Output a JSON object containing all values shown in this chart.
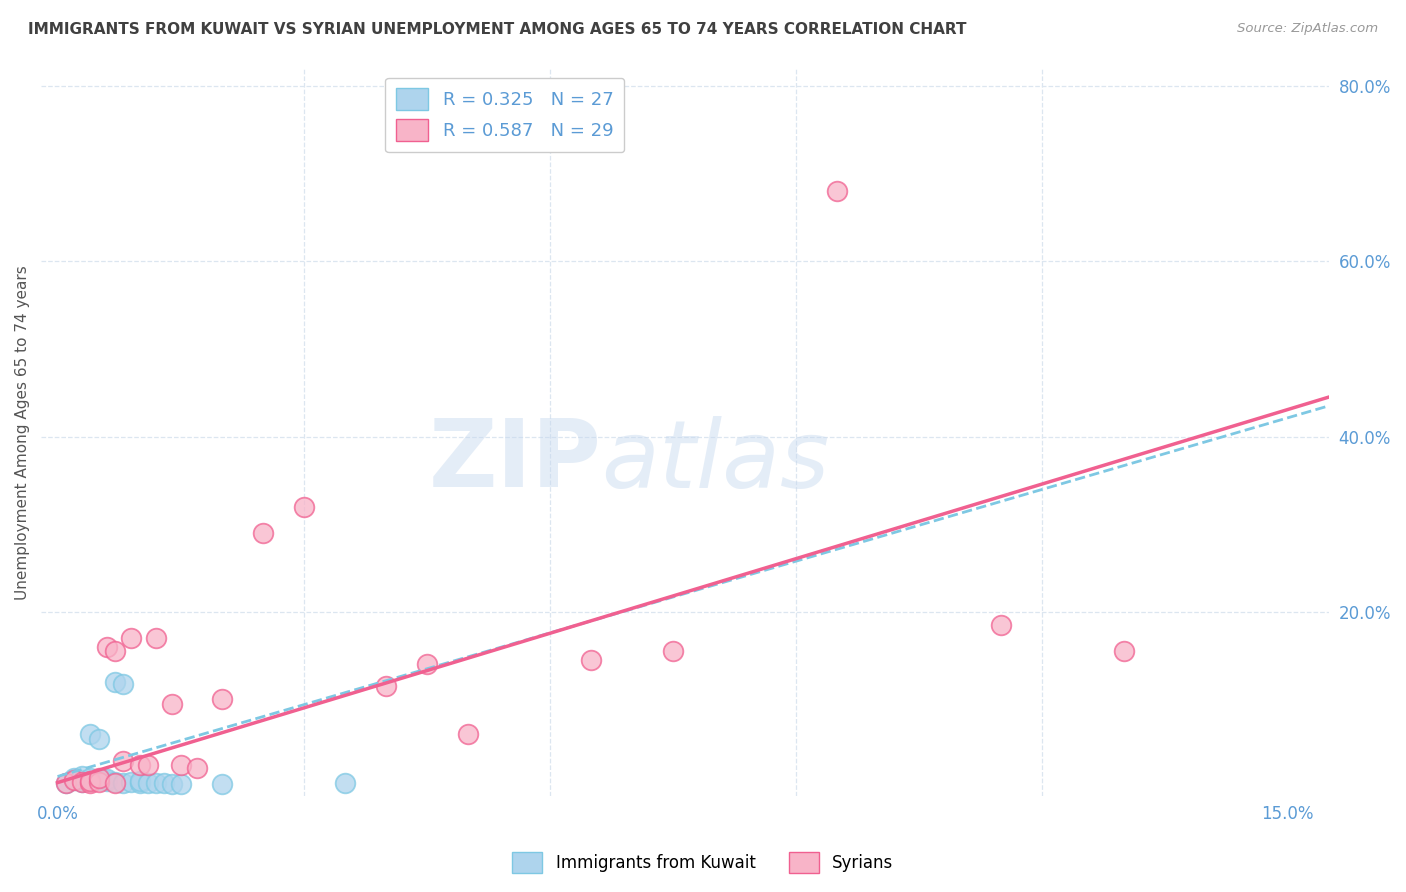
{
  "title": "IMMIGRANTS FROM KUWAIT VS SYRIAN UNEMPLOYMENT AMONG AGES 65 TO 74 YEARS CORRELATION CHART",
  "source": "Source: ZipAtlas.com",
  "ylabel": "Unemployment Among Ages 65 to 74 years",
  "xlim": [
    -0.002,
    0.155
  ],
  "ylim": [
    -0.01,
    0.82
  ],
  "xticks": [
    0.0,
    0.03,
    0.06,
    0.09,
    0.12,
    0.15
  ],
  "xticklabels": [
    "0.0%",
    "",
    "",
    "",
    "",
    "15.0%"
  ],
  "yticks_right": [
    0.2,
    0.4,
    0.6,
    0.8
  ],
  "yticklabels_right": [
    "20.0%",
    "40.0%",
    "60.0%",
    "80.0%"
  ],
  "grid_yticks": [
    0.2,
    0.4,
    0.6,
    0.8
  ],
  "grid_xticks": [
    0.03,
    0.06,
    0.09,
    0.12
  ],
  "legend_entries": [
    {
      "label": "R = 0.325   N = 27",
      "color": "#7ec8e3"
    },
    {
      "label": "R = 0.587   N = 29",
      "color": "#ffb6c8"
    }
  ],
  "kuwait_scatter": [
    [
      0.001,
      0.005
    ],
    [
      0.002,
      0.008
    ],
    [
      0.002,
      0.01
    ],
    [
      0.003,
      0.006
    ],
    [
      0.003,
      0.008
    ],
    [
      0.003,
      0.012
    ],
    [
      0.004,
      0.007
    ],
    [
      0.004,
      0.01
    ],
    [
      0.004,
      0.06
    ],
    [
      0.005,
      0.055
    ],
    [
      0.005,
      0.008
    ],
    [
      0.006,
      0.007
    ],
    [
      0.006,
      0.009
    ],
    [
      0.007,
      0.006
    ],
    [
      0.007,
      0.12
    ],
    [
      0.008,
      0.118
    ],
    [
      0.008,
      0.005
    ],
    [
      0.009,
      0.006
    ],
    [
      0.01,
      0.005
    ],
    [
      0.01,
      0.007
    ],
    [
      0.011,
      0.005
    ],
    [
      0.012,
      0.004
    ],
    [
      0.013,
      0.004
    ],
    [
      0.014,
      0.003
    ],
    [
      0.015,
      0.003
    ],
    [
      0.02,
      0.003
    ],
    [
      0.035,
      0.005
    ]
  ],
  "syrian_scatter": [
    [
      0.001,
      0.005
    ],
    [
      0.002,
      0.008
    ],
    [
      0.003,
      0.006
    ],
    [
      0.004,
      0.005
    ],
    [
      0.004,
      0.007
    ],
    [
      0.005,
      0.006
    ],
    [
      0.005,
      0.01
    ],
    [
      0.006,
      0.16
    ],
    [
      0.007,
      0.155
    ],
    [
      0.007,
      0.005
    ],
    [
      0.008,
      0.03
    ],
    [
      0.009,
      0.17
    ],
    [
      0.01,
      0.025
    ],
    [
      0.011,
      0.025
    ],
    [
      0.012,
      0.17
    ],
    [
      0.014,
      0.095
    ],
    [
      0.015,
      0.025
    ],
    [
      0.017,
      0.022
    ],
    [
      0.02,
      0.1
    ],
    [
      0.025,
      0.29
    ],
    [
      0.03,
      0.32
    ],
    [
      0.04,
      0.115
    ],
    [
      0.045,
      0.14
    ],
    [
      0.05,
      0.06
    ],
    [
      0.065,
      0.145
    ],
    [
      0.075,
      0.155
    ],
    [
      0.095,
      0.68
    ],
    [
      0.115,
      0.185
    ],
    [
      0.13,
      0.155
    ]
  ],
  "kuwait_line_x": [
    0.0,
    0.155
  ],
  "kuwait_line_y": [
    0.012,
    0.435
  ],
  "syrian_line_x": [
    0.0,
    0.155
  ],
  "syrian_line_y": [
    0.005,
    0.445
  ],
  "watermark_zip": "ZIP",
  "watermark_atlas": "atlas",
  "background_color": "#ffffff",
  "scatter_color_kuwait": "#aed4ed",
  "scatter_color_syrian": "#f8b4c8",
  "line_color_kuwait": "#7ec8e3",
  "line_color_syrian": "#f06090",
  "axis_color": "#5b9bd5",
  "grid_color": "#dce6f0",
  "title_color": "#404040",
  "ylabel_color": "#555555",
  "source_color": "#999999"
}
